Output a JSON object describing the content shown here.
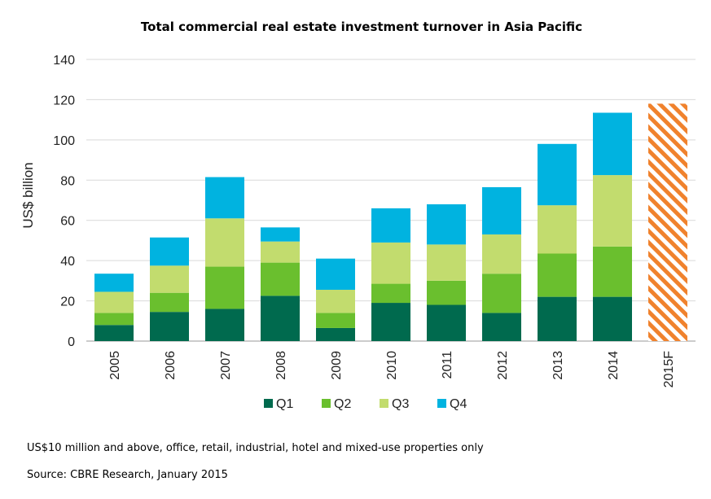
{
  "chart_data": {
    "type": "bar",
    "stacked": true,
    "title": "Total commercial real estate investment turnover in Asia Pacific",
    "ylabel": "US$ billion",
    "xlabel": "",
    "ylim": [
      0,
      140
    ],
    "yticks": [
      0,
      20,
      40,
      60,
      80,
      100,
      120,
      140
    ],
    "grid": true,
    "legend_position": "bottom",
    "categories": [
      "2005",
      "2006",
      "2007",
      "2008",
      "2009",
      "2010",
      "2011",
      "2012",
      "2013",
      "2014",
      "2015F"
    ],
    "series": [
      {
        "name": "Q1",
        "color": "#006a4e",
        "values": [
          8,
          14.5,
          16,
          22.5,
          6.5,
          19,
          18,
          14,
          22,
          22,
          null
        ]
      },
      {
        "name": "Q2",
        "color": "#6abf2e",
        "values": [
          6,
          9.5,
          21,
          16.5,
          7.5,
          9.5,
          12,
          19.5,
          21.5,
          25,
          null
        ]
      },
      {
        "name": "Q3",
        "color": "#c2dc6e",
        "values": [
          10.5,
          13.5,
          24,
          10.5,
          11.5,
          20.5,
          18,
          19.5,
          24,
          35.5,
          null
        ]
      },
      {
        "name": "Q4",
        "color": "#00b3e0",
        "values": [
          9,
          14,
          20.5,
          7,
          15.5,
          17,
          20,
          23.5,
          30.5,
          31,
          null
        ]
      }
    ],
    "forecast": {
      "category": "2015F",
      "value": 118,
      "color": "#f0822d",
      "pattern": "diagonal-hatch"
    }
  },
  "notes": {
    "line1": "US$10 million and above, office, retail, industrial, hotel and mixed-use properties only",
    "line2": "Source: CBRE Research, January 2015"
  },
  "colors": {
    "grid": "#d9d9d9",
    "axis": "#999999"
  }
}
